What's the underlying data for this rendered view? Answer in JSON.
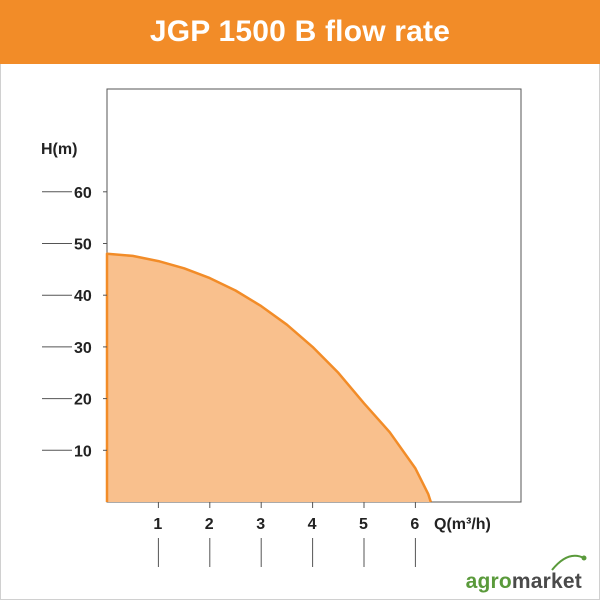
{
  "title": "JGP 1500 B flow rate",
  "logo": {
    "part1": "agro",
    "part2": "market"
  },
  "colors": {
    "header": "#f28c28",
    "curve": "#f28c28",
    "area_fill": "#f9c08d",
    "logo_green": "#5a9a3b",
    "logo_gray": "#4a4a4a"
  },
  "chart_data": {
    "type": "area",
    "title": "JGP 1500 B flow rate",
    "xlabel": "Q(m³/h)",
    "ylabel": "H(m)",
    "xlim": [
      0,
      7
    ],
    "ylim": [
      0,
      70
    ],
    "x_ticks": [
      1,
      2,
      3,
      4,
      5,
      6
    ],
    "y_ticks": [
      10,
      20,
      30,
      40,
      50,
      60
    ],
    "grid": false,
    "series": [
      {
        "x": [
          0,
          0.5,
          1,
          1.5,
          2,
          2.5,
          3,
          3.5,
          4,
          4.5,
          5,
          5.5,
          6,
          6.25,
          6.3
        ],
        "y": [
          48,
          47.6,
          46.6,
          45.2,
          43.3,
          40.9,
          37.9,
          34.3,
          30,
          25,
          19.1,
          13.5,
          6.5,
          1.5,
          0
        ]
      }
    ]
  }
}
